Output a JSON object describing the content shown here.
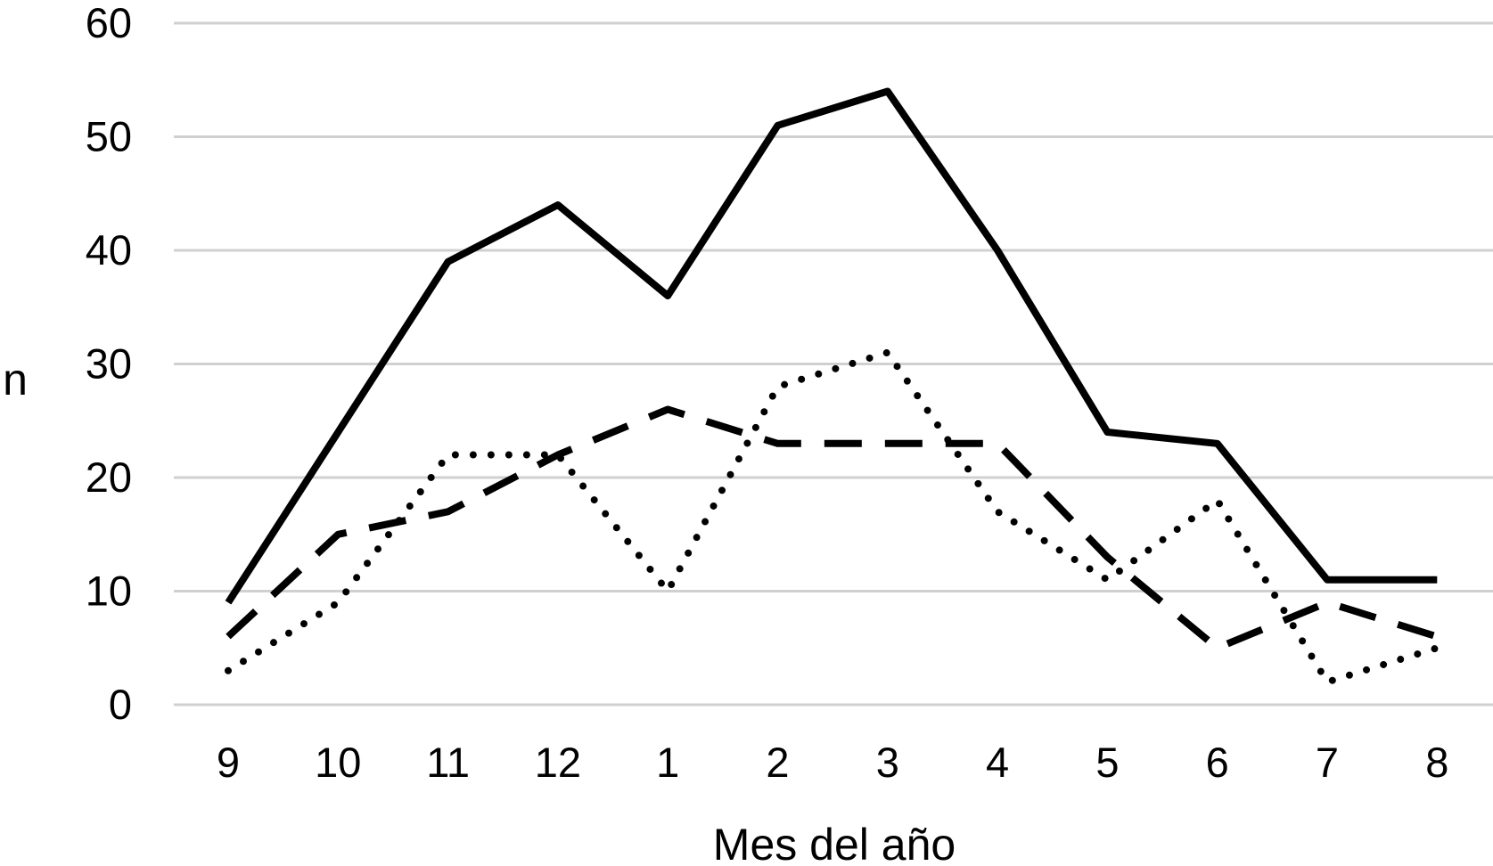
{
  "chart_data": {
    "type": "line",
    "title": "",
    "xlabel": "Mes del año",
    "ylabel": "n",
    "categories": [
      "9",
      "10",
      "11",
      "12",
      "1",
      "2",
      "3",
      "4",
      "5",
      "6",
      "7",
      "8"
    ],
    "ylim": [
      0,
      60
    ],
    "yticks": [
      "0",
      "10",
      "20",
      "30",
      "40",
      "50",
      "60"
    ],
    "grid": true,
    "legend": "none",
    "series": [
      {
        "style": "solid",
        "color": "#000000",
        "values": [
          9,
          24,
          39,
          44,
          36,
          51,
          54,
          40,
          24,
          23,
          11,
          11
        ]
      },
      {
        "style": "dashed",
        "color": "#000000",
        "values": [
          6,
          15,
          17,
          22,
          26,
          23,
          23,
          23,
          13,
          5,
          9,
          6
        ]
      },
      {
        "style": "dotted",
        "color": "#000000",
        "values": [
          3,
          9,
          22,
          22,
          10,
          28,
          31,
          17,
          11,
          18,
          2,
          5
        ]
      }
    ],
    "gridline_color": "#d0d0d0"
  }
}
